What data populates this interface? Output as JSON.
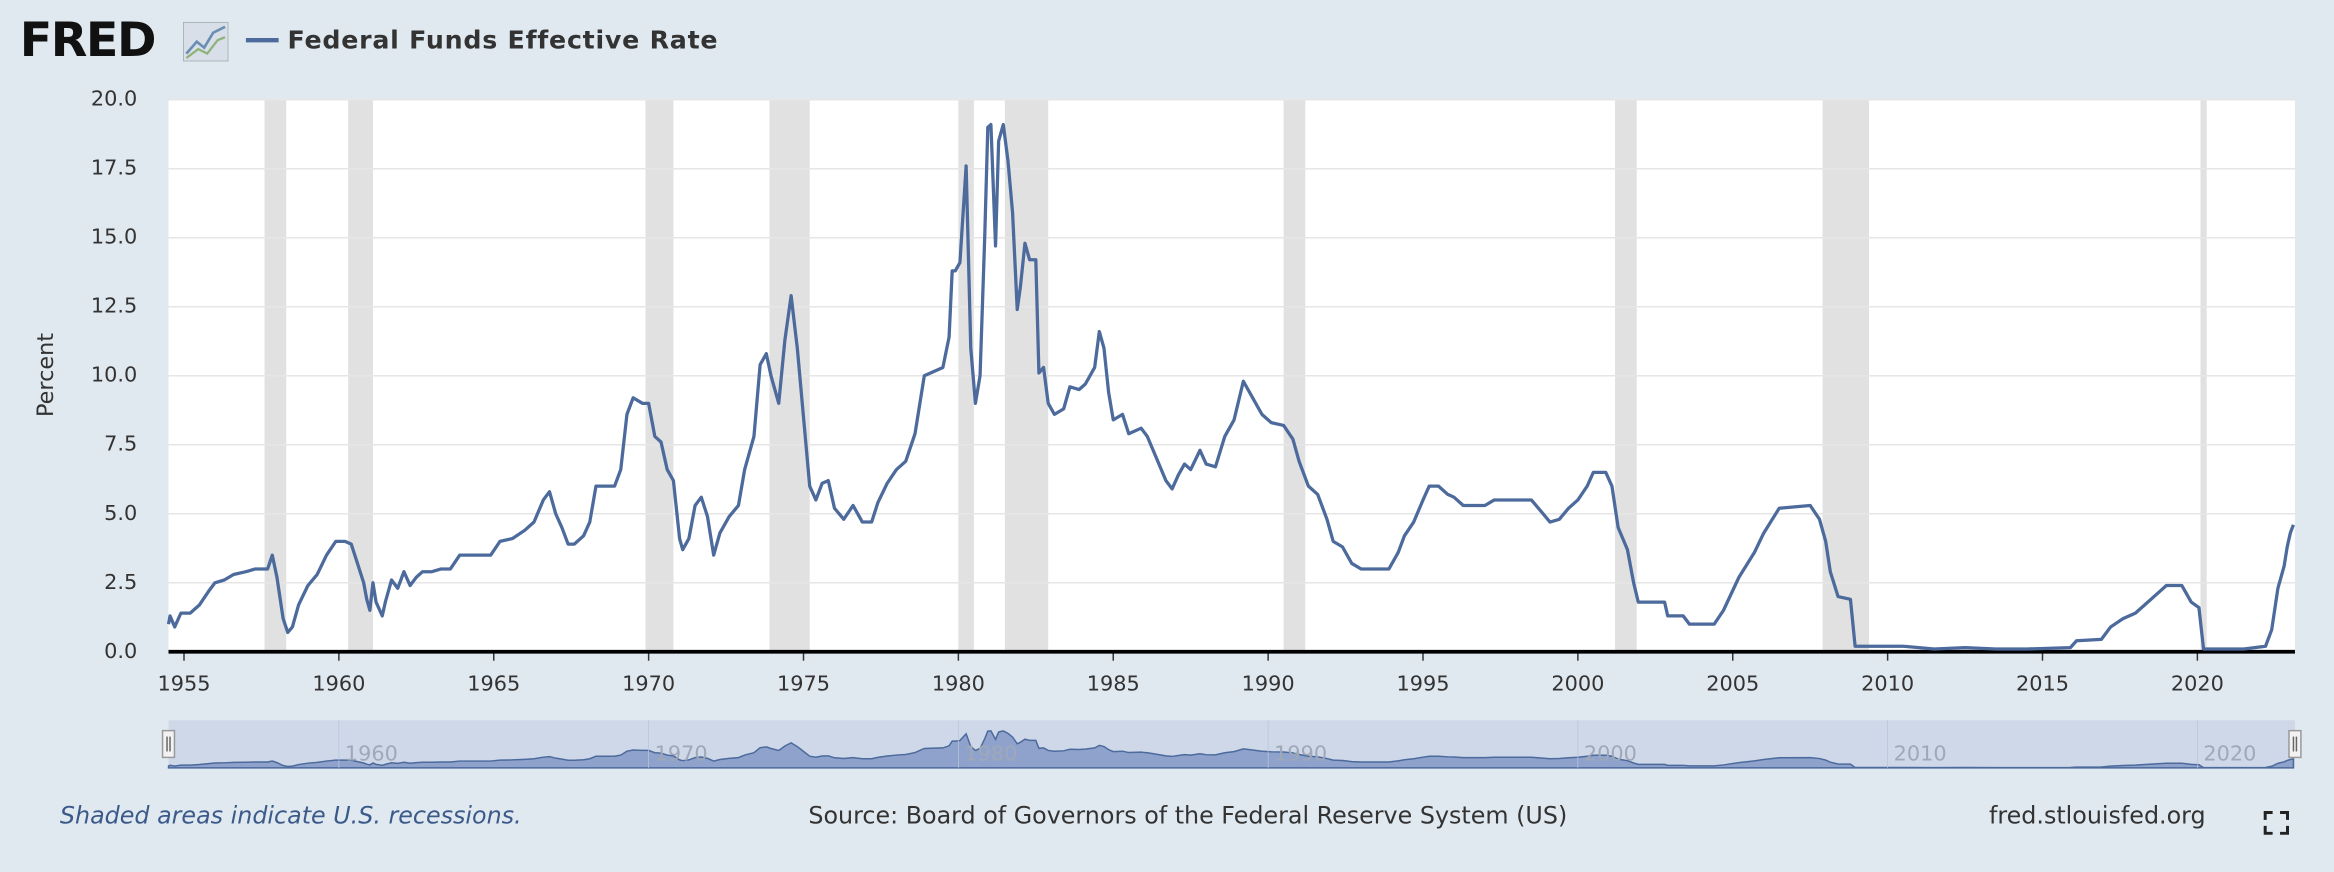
{
  "logo": "FRED",
  "chart_data": {
    "type": "line",
    "y_label": "Percent",
    "note": "Shaded areas indicate U.S. recessions.",
    "source": "Source: Board of Governors of the Federal Reserve System (US)",
    "site": "fred.stlouisfed.org",
    "xlim": [
      1954.5,
      2023.15
    ],
    "ylim": [
      0,
      20
    ],
    "xticks": [
      1955,
      1960,
      1965,
      1970,
      1975,
      1980,
      1985,
      1990,
      1995,
      2000,
      2005,
      2010,
      2015,
      2020
    ],
    "yticks": [
      {
        "value": 0,
        "label": "0.0"
      },
      2.5,
      {
        "value": 5,
        "label": "5.0"
      },
      7.5,
      {
        "value": 10,
        "label": "10.0"
      },
      12.5,
      {
        "value": 15,
        "label": "15.0"
      },
      17.5,
      {
        "value": 20,
        "label": "20.0"
      }
    ],
    "navigator_ticks": [
      1960,
      1970,
      1980,
      1990,
      2000,
      2010,
      2020
    ],
    "grid": true,
    "recessions": [
      [
        1957.6,
        1958.3
      ],
      [
        1960.3,
        1961.1
      ],
      [
        1969.9,
        1970.8
      ],
      [
        1973.9,
        1975.2
      ],
      [
        1980.0,
        1980.5
      ],
      [
        1981.5,
        1982.9
      ],
      [
        1990.5,
        1991.2
      ],
      [
        2001.2,
        2001.9
      ],
      [
        2007.9,
        2009.4
      ],
      [
        2020.1,
        2020.3
      ]
    ],
    "x": [
      1954.5,
      1954.55,
      1954.7,
      1954.9,
      1955.2,
      1955.5,
      1955.8,
      1956.0,
      1956.3,
      1956.6,
      1957.0,
      1957.3,
      1957.7,
      1957.85,
      1958.0,
      1958.2,
      1958.35,
      1958.5,
      1958.7,
      1959.0,
      1959.3,
      1959.6,
      1959.9,
      1960.2,
      1960.4,
      1960.6,
      1960.8,
      1960.9,
      1961.0,
      1961.1,
      1961.2,
      1961.4,
      1961.5,
      1961.7,
      1961.9,
      1962.0,
      1962.1,
      1962.3,
      1962.5,
      1962.7,
      1963.0,
      1963.3,
      1963.6,
      1963.9,
      1964.2,
      1964.5,
      1964.9,
      1965.2,
      1965.6,
      1966.0,
      1966.3,
      1966.6,
      1966.8,
      1967.0,
      1967.2,
      1967.4,
      1967.6,
      1967.9,
      1968.1,
      1968.3,
      1968.6,
      1968.9,
      1969.1,
      1969.3,
      1969.5,
      1969.8,
      1970.0,
      1970.2,
      1970.4,
      1970.6,
      1970.8,
      1971.0,
      1971.1,
      1971.3,
      1971.5,
      1971.7,
      1971.9,
      1972.1,
      1972.3,
      1972.6,
      1972.9,
      1973.1,
      1973.4,
      1973.6,
      1973.8,
      1973.95,
      1974.2,
      1974.4,
      1974.6,
      1974.8,
      1975.0,
      1975.2,
      1975.4,
      1975.6,
      1975.8,
      1976.0,
      1976.3,
      1976.6,
      1976.9,
      1977.2,
      1977.4,
      1977.7,
      1978.0,
      1978.3,
      1978.6,
      1978.9,
      1979.1,
      1979.5,
      1979.7,
      1979.8,
      1979.9,
      1980.05,
      1980.25,
      1980.4,
      1980.55,
      1980.7,
      1980.85,
      1980.95,
      1981.05,
      1981.2,
      1981.3,
      1981.45,
      1981.6,
      1981.75,
      1981.9,
      1982.0,
      1982.15,
      1982.3,
      1982.5,
      1982.6,
      1982.75,
      1982.9,
      1983.1,
      1983.4,
      1983.6,
      1983.9,
      1984.1,
      1984.4,
      1984.55,
      1984.7,
      1984.85,
      1985.0,
      1985.3,
      1985.5,
      1985.9,
      1986.1,
      1986.4,
      1986.7,
      1986.9,
      1987.1,
      1987.3,
      1987.5,
      1987.8,
      1988.0,
      1988.3,
      1988.6,
      1988.9,
      1989.2,
      1989.5,
      1989.8,
      1990.1,
      1990.5,
      1990.8,
      1991.0,
      1991.3,
      1991.6,
      1991.9,
      1992.1,
      1992.4,
      1992.7,
      1993.0,
      1993.5,
      1993.9,
      1994.2,
      1994.4,
      1994.7,
      1995.0,
      1995.2,
      1995.5,
      1995.8,
      1996.0,
      1996.3,
      1996.6,
      1997.0,
      1997.3,
      1997.6,
      1998.0,
      1998.5,
      1998.8,
      1999.1,
      1999.4,
      1999.7,
      2000.0,
      2000.3,
      2000.5,
      2000.9,
      2001.1,
      2001.3,
      2001.6,
      2001.8,
      2001.95,
      2002.3,
      2002.8,
      2002.9,
      2003.4,
      2003.6,
      2004.4,
      2004.7,
      2005.2,
      2005.7,
      2006.0,
      2006.5,
      2007.5,
      2007.8,
      2008.0,
      2008.15,
      2008.4,
      2008.8,
      2008.95,
      2009.5,
      2010.5,
      2011.5,
      2012.5,
      2013.5,
      2014.5,
      2015.9,
      2016.1,
      2016.9,
      2017.2,
      2017.6,
      2018.0,
      2018.3,
      2018.8,
      2019.0,
      2019.5,
      2019.8,
      2020.05,
      2020.2,
      2021.5,
      2022.2,
      2022.4,
      2022.6,
      2022.8,
      2022.9,
      2023.0,
      2023.1
    ],
    "series": [
      {
        "name": "Federal Funds Effective Rate",
        "color": "#4c6a9c",
        "values": [
          1.0,
          1.3,
          0.9,
          1.4,
          1.4,
          1.7,
          2.2,
          2.5,
          2.6,
          2.8,
          2.9,
          3.0,
          3.0,
          3.5,
          2.7,
          1.2,
          0.7,
          0.9,
          1.7,
          2.4,
          2.8,
          3.5,
          4.0,
          4.0,
          3.9,
          3.2,
          2.5,
          1.9,
          1.5,
          2.5,
          1.8,
          1.3,
          1.8,
          2.6,
          2.3,
          2.6,
          2.9,
          2.4,
          2.7,
          2.9,
          2.9,
          3.0,
          3.0,
          3.5,
          3.5,
          3.5,
          3.5,
          4.0,
          4.1,
          4.4,
          4.7,
          5.5,
          5.8,
          5.0,
          4.5,
          3.9,
          3.9,
          4.2,
          4.7,
          6.0,
          6.0,
          6.0,
          6.6,
          8.6,
          9.2,
          9.0,
          9.0,
          7.8,
          7.6,
          6.6,
          6.2,
          4.1,
          3.7,
          4.1,
          5.3,
          5.6,
          4.9,
          3.5,
          4.3,
          4.9,
          5.3,
          6.6,
          7.8,
          10.4,
          10.8,
          10.0,
          9.0,
          11.3,
          12.9,
          11.0,
          8.5,
          6.0,
          5.5,
          6.1,
          6.2,
          5.2,
          4.8,
          5.3,
          4.7,
          4.7,
          5.4,
          6.1,
          6.6,
          6.9,
          7.9,
          10.0,
          10.1,
          10.3,
          11.4,
          13.8,
          13.8,
          14.1,
          17.6,
          11.0,
          9.0,
          10.0,
          15.0,
          19.0,
          19.1,
          14.7,
          18.5,
          19.1,
          17.8,
          15.9,
          12.4,
          13.2,
          14.8,
          14.2,
          14.2,
          10.1,
          10.3,
          9.0,
          8.6,
          8.8,
          9.6,
          9.5,
          9.7,
          10.3,
          11.6,
          11.0,
          9.4,
          8.4,
          8.6,
          7.9,
          8.1,
          7.8,
          7.0,
          6.2,
          5.9,
          6.4,
          6.8,
          6.6,
          7.3,
          6.8,
          6.7,
          7.8,
          8.4,
          9.8,
          9.2,
          8.6,
          8.3,
          8.2,
          7.7,
          6.9,
          6.0,
          5.7,
          4.8,
          4.0,
          3.8,
          3.2,
          3.0,
          3.0,
          3.0,
          3.6,
          4.2,
          4.7,
          5.5,
          6.0,
          6.0,
          5.7,
          5.6,
          5.3,
          5.3,
          5.3,
          5.5,
          5.5,
          5.5,
          5.5,
          5.1,
          4.7,
          4.8,
          5.2,
          5.5,
          6.0,
          6.5,
          6.5,
          6.0,
          4.5,
          3.7,
          2.5,
          1.8,
          1.8,
          1.8,
          1.3,
          1.3,
          1.0,
          1.0,
          1.5,
          2.7,
          3.6,
          4.3,
          5.2,
          5.3,
          4.8,
          4.0,
          2.9,
          2.0,
          1.9,
          0.2,
          0.2,
          0.2,
          0.1,
          0.15,
          0.1,
          0.1,
          0.15,
          0.4,
          0.45,
          0.9,
          1.2,
          1.4,
          1.7,
          2.2,
          2.4,
          2.4,
          1.8,
          1.6,
          0.1,
          0.1,
          0.2,
          0.8,
          2.3,
          3.1,
          3.8,
          4.3,
          4.6
        ]
      }
    ]
  }
}
